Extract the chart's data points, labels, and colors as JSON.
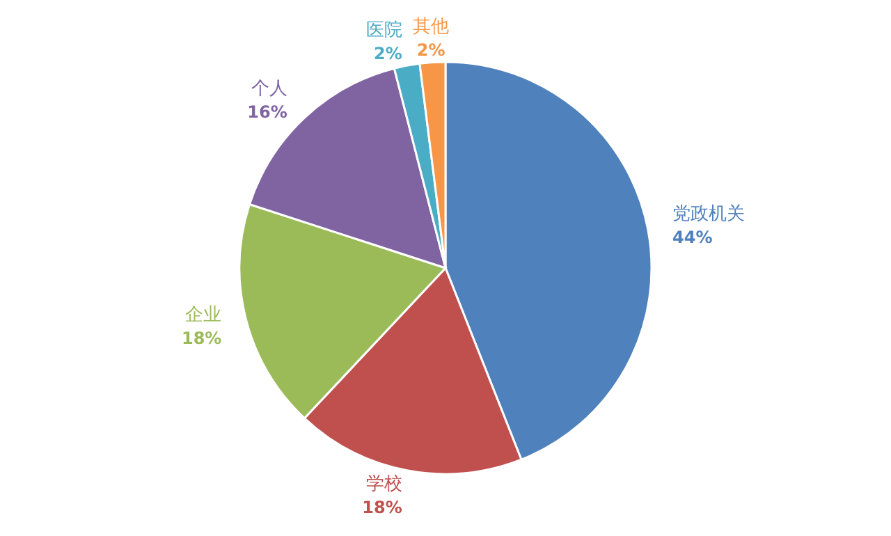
{
  "chart_data": {
    "type": "pie",
    "categories": [
      "党政机关",
      "学校",
      "企业",
      "个人",
      "医院",
      "其他"
    ],
    "values": [
      44,
      18,
      18,
      16,
      2,
      2
    ],
    "value_labels": [
      "44%",
      "18%",
      "18%",
      "16%",
      "2%",
      "2%"
    ],
    "colors": [
      "#4f81bd",
      "#c0504d",
      "#9bbb59",
      "#8064a2",
      "#4bacc6",
      "#f79646"
    ],
    "data_labels": true
  }
}
